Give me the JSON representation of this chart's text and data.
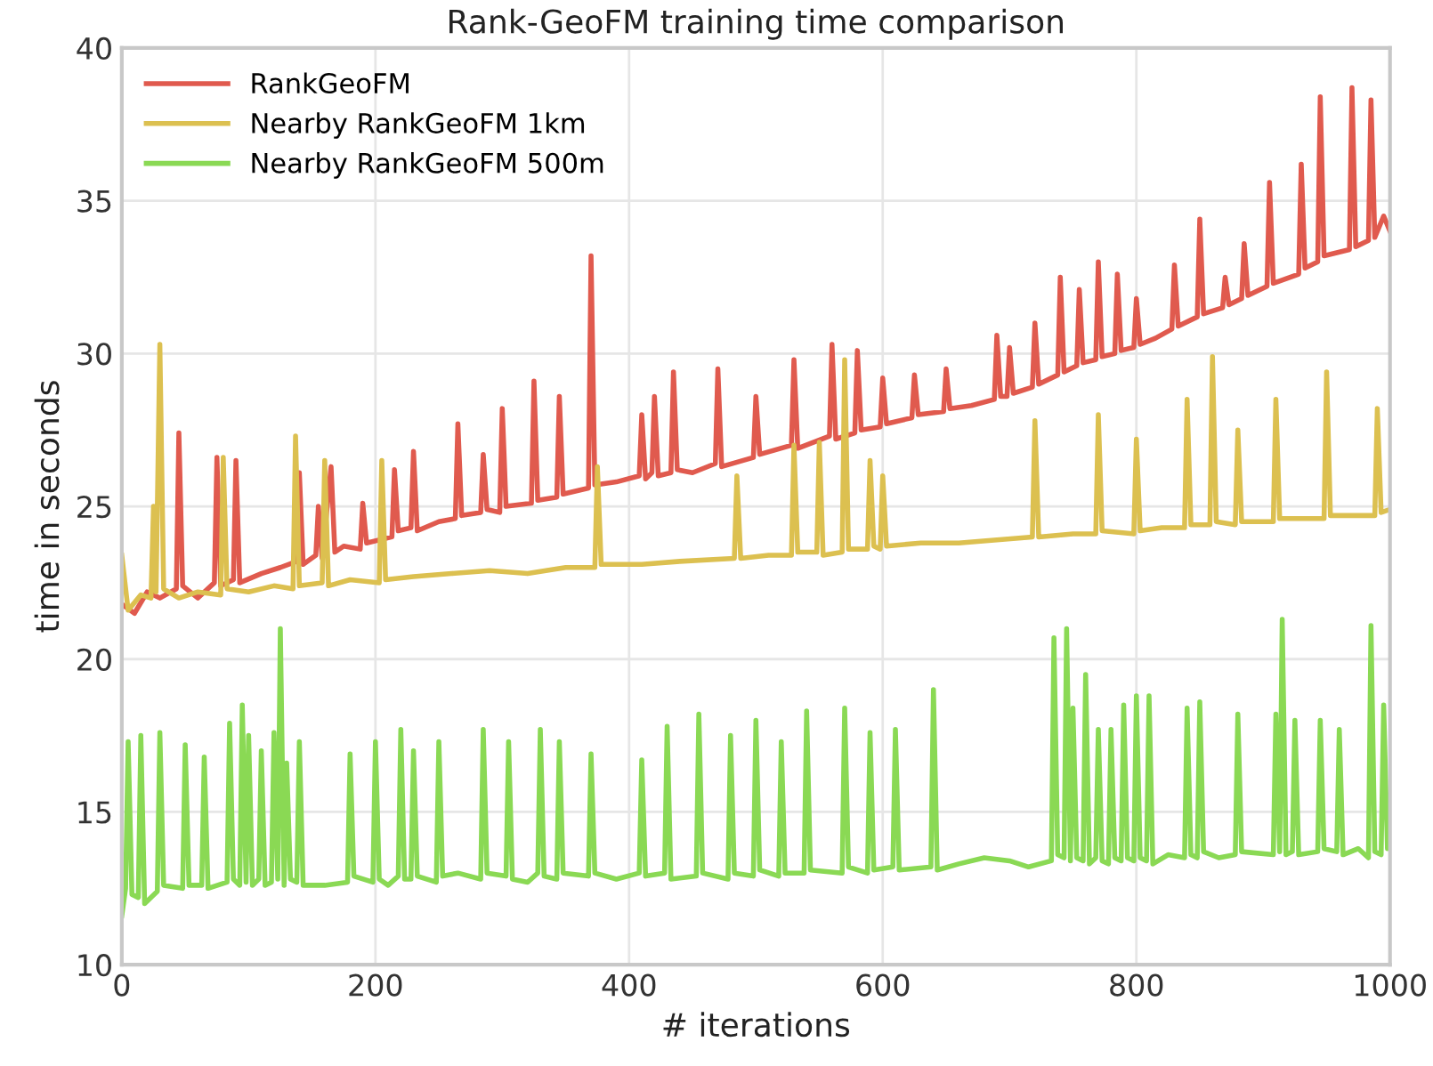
{
  "chart_data": {
    "type": "line",
    "title": "Rank-GeoFM training time comparison",
    "xlabel": "# iterations",
    "ylabel": "time in seconds",
    "xlim": [
      0,
      1000
    ],
    "xticks": [
      0,
      200,
      400,
      600,
      800,
      1000
    ],
    "ylim": [
      10,
      40
    ],
    "yticks": [
      10,
      15,
      20,
      25,
      30,
      35,
      40
    ],
    "grid": true,
    "legend": "top left",
    "marker": "none",
    "line_style": "solid",
    "series": [
      {
        "name": "RankGeoFM",
        "color": "#e05a4e",
        "x": [
          0,
          10,
          20,
          30,
          43,
          45,
          48,
          60,
          73,
          75,
          78,
          88,
          90,
          93,
          110,
          125,
          138,
          140,
          143,
          153,
          155,
          158,
          165,
          168,
          175,
          188,
          190,
          193,
          213,
          215,
          218,
          228,
          230,
          233,
          250,
          263,
          265,
          268,
          283,
          285,
          288,
          298,
          300,
          303,
          323,
          325,
          328,
          343,
          345,
          348,
          368,
          370,
          373,
          390,
          408,
          410,
          413,
          418,
          420,
          423,
          433,
          435,
          438,
          450,
          468,
          470,
          473,
          498,
          500,
          503,
          528,
          530,
          533,
          558,
          560,
          563,
          578,
          580,
          583,
          598,
          600,
          603,
          623,
          625,
          628,
          648,
          650,
          653,
          670,
          688,
          690,
          693,
          698,
          700,
          703,
          718,
          720,
          723,
          738,
          740,
          743,
          753,
          755,
          758,
          768,
          770,
          773,
          783,
          785,
          788,
          798,
          800,
          803,
          815,
          828,
          830,
          833,
          848,
          850,
          853,
          868,
          870,
          873,
          883,
          885,
          888,
          903,
          905,
          908,
          928,
          930,
          933,
          943,
          945,
          948,
          958,
          968,
          970,
          973,
          983,
          985,
          988,
          995,
          1000
        ],
        "values": [
          21.8,
          21.5,
          22.2,
          22.0,
          22.3,
          27.4,
          22.4,
          22.0,
          22.5,
          26.6,
          22.4,
          22.6,
          26.5,
          22.5,
          22.8,
          23.0,
          23.2,
          26.1,
          23.1,
          23.4,
          25.0,
          23.3,
          26.3,
          23.5,
          23.7,
          23.6,
          25.1,
          23.8,
          24.0,
          26.2,
          24.2,
          24.3,
          26.8,
          24.2,
          24.5,
          24.6,
          27.7,
          24.7,
          24.8,
          26.7,
          24.9,
          24.8,
          28.2,
          25.0,
          25.1,
          29.1,
          25.2,
          25.3,
          28.6,
          25.4,
          25.6,
          33.2,
          25.7,
          25.8,
          26.0,
          28.0,
          25.9,
          26.1,
          28.6,
          26.0,
          26.1,
          29.4,
          26.2,
          26.1,
          26.4,
          29.5,
          26.3,
          26.6,
          28.6,
          26.7,
          27.0,
          29.8,
          26.9,
          27.3,
          30.3,
          27.2,
          27.4,
          30.1,
          27.5,
          27.6,
          29.2,
          27.7,
          27.9,
          29.3,
          28.0,
          28.1,
          29.5,
          28.2,
          28.3,
          28.5,
          30.6,
          28.6,
          28.6,
          30.2,
          28.7,
          28.9,
          31.0,
          29.0,
          29.3,
          32.5,
          29.4,
          29.6,
          32.1,
          29.7,
          29.8,
          33.0,
          29.9,
          30.0,
          32.6,
          30.1,
          30.2,
          31.8,
          30.3,
          30.5,
          30.8,
          32.9,
          30.9,
          31.2,
          34.4,
          31.3,
          31.5,
          32.5,
          31.6,
          31.8,
          33.6,
          31.9,
          32.2,
          35.6,
          32.3,
          32.6,
          36.2,
          32.8,
          33.0,
          38.4,
          33.2,
          33.3,
          33.4,
          38.7,
          33.5,
          33.7,
          38.3,
          33.8,
          34.5,
          34.0
        ]
      },
      {
        "name": "Nearby RankGeoFM 1km",
        "color": "#dcc050",
        "x": [
          0,
          5,
          15,
          23,
          25,
          27,
          30,
          33,
          45,
          60,
          78,
          80,
          83,
          100,
          120,
          135,
          137,
          140,
          158,
          160,
          163,
          180,
          203,
          205,
          208,
          230,
          260,
          290,
          320,
          350,
          373,
          375,
          378,
          410,
          440,
          483,
          485,
          488,
          510,
          528,
          530,
          533,
          548,
          550,
          553,
          568,
          570,
          573,
          588,
          590,
          593,
          598,
          600,
          603,
          630,
          660,
          690,
          718,
          720,
          723,
          750,
          768,
          770,
          773,
          798,
          800,
          803,
          820,
          838,
          840,
          843,
          858,
          860,
          863,
          878,
          880,
          883,
          908,
          910,
          913,
          930,
          948,
          950,
          953,
          970,
          988,
          990,
          993,
          1000
        ],
        "values": [
          23.4,
          21.6,
          22.1,
          22.0,
          25.0,
          22.2,
          30.3,
          22.3,
          22.0,
          22.2,
          22.1,
          26.6,
          22.3,
          22.2,
          22.4,
          22.3,
          27.3,
          22.4,
          22.5,
          26.5,
          22.4,
          22.6,
          22.5,
          26.5,
          22.6,
          22.7,
          22.8,
          22.9,
          22.8,
          23.0,
          23.0,
          26.3,
          23.1,
          23.1,
          23.2,
          23.3,
          26.0,
          23.3,
          23.4,
          23.4,
          27.0,
          23.5,
          23.5,
          27.1,
          23.4,
          23.5,
          29.8,
          23.6,
          23.6,
          26.5,
          23.7,
          23.6,
          26.0,
          23.7,
          23.8,
          23.8,
          23.9,
          24.0,
          27.8,
          24.0,
          24.1,
          24.1,
          28.0,
          24.2,
          24.1,
          27.2,
          24.2,
          24.3,
          24.3,
          28.5,
          24.4,
          24.4,
          29.9,
          24.5,
          24.4,
          27.5,
          24.5,
          24.5,
          28.5,
          24.6,
          24.6,
          24.6,
          29.4,
          24.7,
          24.7,
          24.7,
          28.2,
          24.8,
          24.9
        ]
      },
      {
        "name": "Nearby RankGeoFM 500m",
        "color": "#8ad954",
        "x": [
          0,
          3,
          5,
          8,
          13,
          15,
          18,
          28,
          30,
          33,
          48,
          50,
          53,
          63,
          65,
          68,
          83,
          85,
          88,
          93,
          95,
          98,
          100,
          103,
          108,
          110,
          113,
          118,
          120,
          123,
          125,
          128,
          130,
          133,
          138,
          140,
          143,
          160,
          178,
          180,
          183,
          198,
          200,
          203,
          210,
          218,
          220,
          223,
          228,
          230,
          233,
          248,
          250,
          253,
          265,
          283,
          285,
          288,
          303,
          305,
          308,
          320,
          328,
          330,
          333,
          343,
          345,
          348,
          368,
          370,
          373,
          390,
          408,
          410,
          413,
          428,
          430,
          433,
          453,
          455,
          458,
          478,
          480,
          483,
          498,
          500,
          503,
          518,
          520,
          523,
          538,
          540,
          543,
          568,
          570,
          573,
          588,
          590,
          593,
          608,
          610,
          613,
          638,
          640,
          643,
          660,
          680,
          700,
          715,
          733,
          735,
          738,
          743,
          745,
          748,
          750,
          753,
          758,
          760,
          763,
          768,
          770,
          773,
          778,
          780,
          783,
          788,
          790,
          793,
          798,
          800,
          803,
          808,
          810,
          813,
          825,
          838,
          840,
          843,
          848,
          850,
          853,
          865,
          878,
          880,
          883,
          908,
          910,
          913,
          915,
          918,
          923,
          925,
          928,
          943,
          945,
          948,
          958,
          960,
          963,
          975,
          983,
          985,
          988,
          993,
          995,
          998,
          1000
        ],
        "values": [
          11.6,
          12.5,
          17.3,
          12.3,
          12.2,
          17.5,
          12.0,
          12.4,
          17.6,
          12.6,
          12.5,
          17.2,
          12.6,
          12.6,
          16.8,
          12.5,
          12.7,
          17.9,
          12.8,
          12.6,
          18.5,
          12.7,
          17.5,
          12.6,
          12.8,
          17.0,
          12.6,
          12.7,
          17.6,
          12.8,
          21.0,
          12.6,
          16.6,
          12.8,
          12.7,
          17.3,
          12.6,
          12.6,
          12.7,
          16.9,
          12.9,
          12.7,
          17.3,
          12.8,
          12.6,
          12.9,
          17.7,
          12.8,
          12.8,
          17.0,
          12.9,
          12.7,
          17.3,
          12.9,
          13.0,
          12.8,
          17.7,
          13.0,
          12.9,
          17.3,
          12.8,
          12.7,
          13.0,
          17.7,
          12.9,
          12.8,
          17.3,
          13.0,
          12.9,
          16.9,
          13.0,
          12.8,
          13.0,
          16.7,
          12.9,
          13.0,
          17.8,
          12.8,
          12.9,
          18.2,
          13.0,
          12.8,
          17.5,
          13.0,
          12.9,
          18.0,
          13.1,
          12.9,
          17.3,
          13.0,
          13.0,
          18.3,
          13.1,
          13.0,
          18.4,
          13.2,
          13.0,
          17.6,
          13.1,
          13.2,
          17.7,
          13.1,
          13.2,
          19.0,
          13.1,
          13.3,
          13.5,
          13.4,
          13.2,
          13.4,
          20.7,
          13.6,
          13.5,
          21.0,
          13.4,
          18.4,
          13.5,
          13.4,
          19.5,
          13.3,
          13.5,
          17.7,
          13.4,
          13.3,
          17.7,
          13.5,
          13.4,
          18.5,
          13.5,
          13.4,
          18.8,
          13.5,
          13.4,
          18.8,
          13.3,
          13.6,
          13.5,
          18.4,
          13.6,
          13.5,
          18.6,
          13.7,
          13.5,
          13.6,
          18.2,
          13.7,
          13.6,
          18.2,
          13.7,
          21.3,
          13.6,
          13.7,
          18.0,
          13.6,
          13.7,
          18.0,
          13.8,
          13.7,
          17.7,
          13.6,
          13.8,
          13.5,
          21.1,
          13.7,
          13.6,
          18.5,
          13.8,
          13.9
        ]
      }
    ]
  }
}
